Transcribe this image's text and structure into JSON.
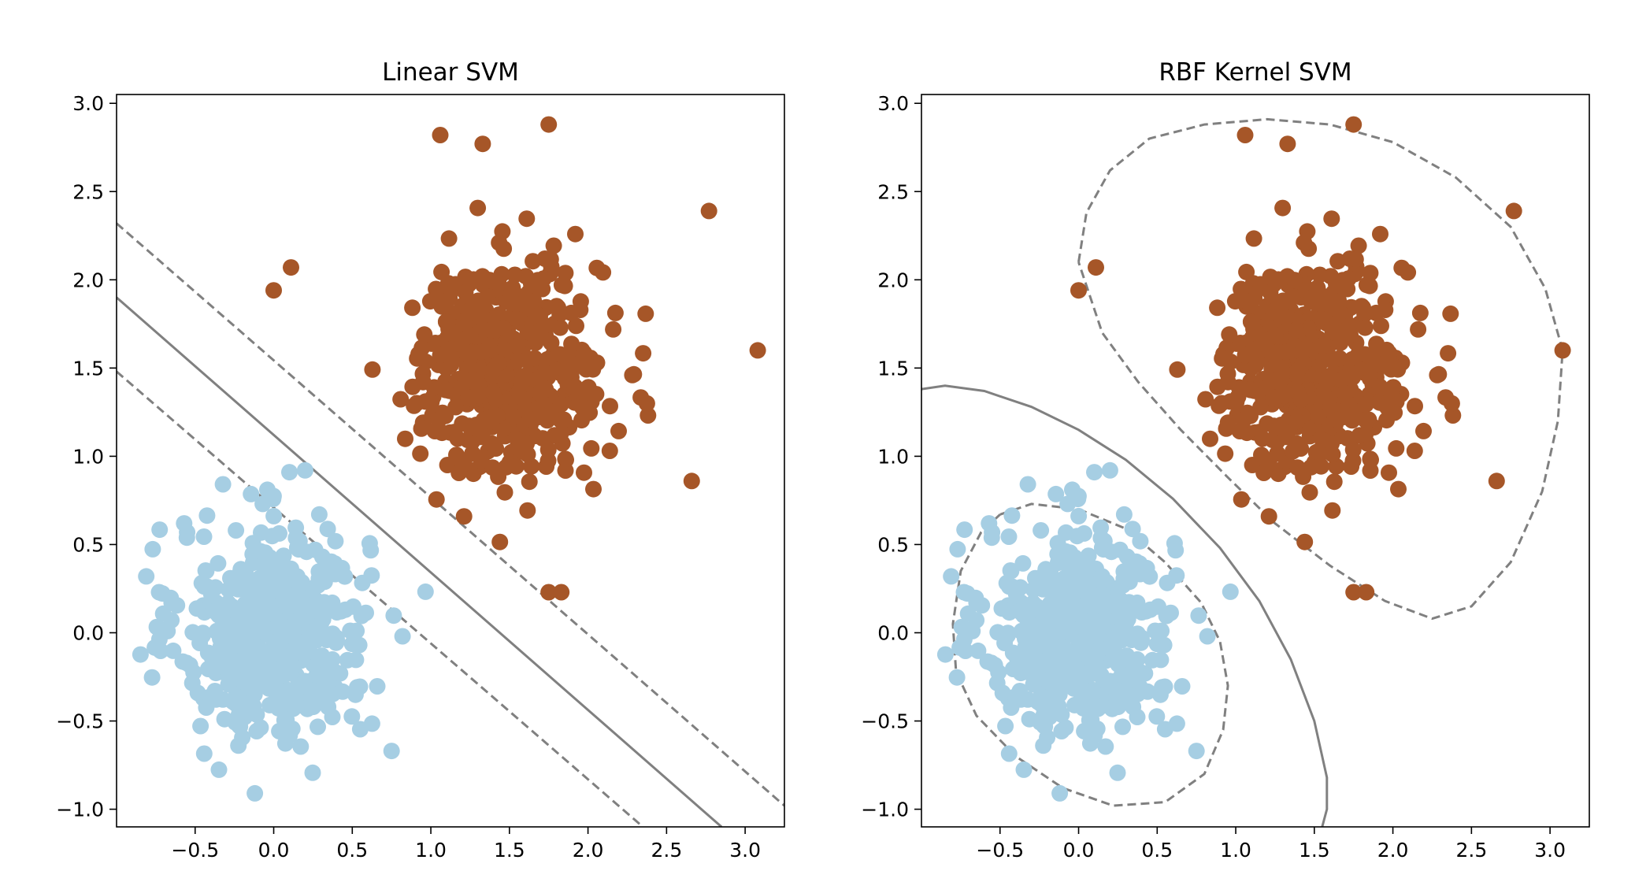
{
  "chart_data": [
    {
      "type": "scatter",
      "title": "Linear SVM",
      "xlim": [
        -1.0,
        3.25
      ],
      "ylim": [
        -1.1,
        3.05
      ],
      "xticks": [
        -0.5,
        0.0,
        0.5,
        1.0,
        1.5,
        2.0,
        2.5,
        3.0
      ],
      "xtick_labels": [
        "−0.5",
        "0.0",
        "0.5",
        "1.0",
        "1.5",
        "2.0",
        "2.5",
        "3.0"
      ],
      "yticks": [
        -1.0,
        -0.5,
        0.0,
        0.5,
        1.0,
        1.5,
        2.0,
        2.5,
        3.0
      ],
      "ytick_labels": [
        "−1.0",
        "−0.5",
        "0.0",
        "0.5",
        "1.0",
        "1.5",
        "2.0",
        "2.5",
        "3.0"
      ],
      "grid": false,
      "classes": [
        {
          "color": "#a6cee3",
          "center": [
            0.0,
            0.0
          ],
          "spread": 0.3,
          "count": 500
        },
        {
          "color": "#a65628",
          "center": [
            1.5,
            1.5
          ],
          "spread": 0.3,
          "count": 500
        }
      ],
      "notable_points": [
        [
          1.06,
          2.82
        ],
        [
          1.75,
          2.88
        ],
        [
          1.33,
          2.77
        ],
        [
          2.77,
          2.39
        ],
        [
          3.08,
          1.6
        ],
        [
          -0.07,
          0.73
        ],
        [
          -0.57,
          0.62
        ],
        [
          0.29,
          0.67
        ],
        [
          -0.12,
          -0.91
        ],
        [
          0.75,
          -0.67
        ],
        [
          0.82,
          -0.02
        ],
        [
          0.1,
          0.91
        ],
        [
          0.2,
          0.92
        ],
        [
          1.75,
          0.23
        ],
        [
          1.83,
          0.23
        ],
        [
          2.66,
          0.86
        ],
        [
          0.0,
          1.94
        ],
        [
          0.11,
          2.07
        ]
      ],
      "decision_lines": [
        {
          "kind": "boundary",
          "style": "solid",
          "points": [
            [
              -1.0,
              1.9
            ],
            [
              2.85,
              -1.1
            ]
          ]
        },
        {
          "kind": "margin",
          "style": "dashed",
          "points": [
            [
              -1.0,
              2.32
            ],
            [
              3.25,
              -0.98
            ]
          ]
        },
        {
          "kind": "margin",
          "style": "dashed",
          "points": [
            [
              -1.0,
              1.48
            ],
            [
              2.35,
              -1.1
            ]
          ]
        }
      ],
      "line_color": "#808080"
    },
    {
      "type": "scatter",
      "title": "RBF Kernel SVM",
      "xlim": [
        -1.0,
        3.25
      ],
      "ylim": [
        -1.1,
        3.05
      ],
      "xticks": [
        -0.5,
        0.0,
        0.5,
        1.0,
        1.5,
        2.0,
        2.5,
        3.0
      ],
      "xtick_labels": [
        "−0.5",
        "0.0",
        "0.5",
        "1.0",
        "1.5",
        "2.0",
        "2.5",
        "3.0"
      ],
      "yticks": [
        -1.0,
        -0.5,
        0.0,
        0.5,
        1.0,
        1.5,
        2.0,
        2.5,
        3.0
      ],
      "ytick_labels": [
        "−1.0",
        "−0.5",
        "0.0",
        "0.5",
        "1.0",
        "1.5",
        "2.0",
        "2.5",
        "3.0"
      ],
      "grid": false,
      "classes": [
        {
          "color": "#a6cee3",
          "center": [
            0.0,
            0.0
          ],
          "spread": 0.3,
          "count": 500
        },
        {
          "color": "#a65628",
          "center": [
            1.5,
            1.5
          ],
          "spread": 0.3,
          "count": 500
        }
      ],
      "notable_points": [
        [
          1.06,
          2.82
        ],
        [
          1.75,
          2.88
        ],
        [
          1.33,
          2.77
        ],
        [
          2.77,
          2.39
        ],
        [
          3.08,
          1.6
        ],
        [
          -0.07,
          0.73
        ],
        [
          -0.57,
          0.62
        ],
        [
          0.29,
          0.67
        ],
        [
          -0.12,
          -0.91
        ],
        [
          0.75,
          -0.67
        ],
        [
          0.82,
          -0.02
        ],
        [
          0.1,
          0.91
        ],
        [
          0.2,
          0.92
        ],
        [
          1.75,
          0.23
        ],
        [
          1.83,
          0.23
        ],
        [
          2.66,
          0.86
        ],
        [
          0.0,
          1.94
        ],
        [
          0.11,
          2.07
        ]
      ],
      "decision_lines": [
        {
          "kind": "boundary",
          "style": "solid",
          "points": [
            [
              -1.0,
              1.38
            ],
            [
              -0.85,
              1.4
            ],
            [
              -0.6,
              1.37
            ],
            [
              -0.3,
              1.28
            ],
            [
              0.0,
              1.15
            ],
            [
              0.3,
              0.98
            ],
            [
              0.6,
              0.76
            ],
            [
              0.9,
              0.48
            ],
            [
              1.15,
              0.18
            ],
            [
              1.35,
              -0.15
            ],
            [
              1.5,
              -0.5
            ],
            [
              1.58,
              -0.82
            ],
            [
              1.58,
              -1.0
            ],
            [
              1.55,
              -1.1
            ]
          ]
        },
        {
          "kind": "margin",
          "style": "dashed",
          "points": [
            [
              -0.5,
              0.67
            ],
            [
              -0.3,
              0.73
            ],
            [
              0.0,
              0.7
            ],
            [
              0.3,
              0.59
            ],
            [
              0.55,
              0.4
            ],
            [
              0.78,
              0.17
            ],
            [
              0.9,
              -0.05
            ],
            [
              0.95,
              -0.3
            ],
            [
              0.92,
              -0.55
            ],
            [
              0.8,
              -0.8
            ],
            [
              0.55,
              -0.96
            ],
            [
              0.22,
              -0.98
            ],
            [
              -0.1,
              -0.88
            ],
            [
              -0.4,
              -0.7
            ],
            [
              -0.65,
              -0.47
            ],
            [
              -0.78,
              -0.22
            ],
            [
              -0.8,
              0.05
            ],
            [
              -0.75,
              0.35
            ],
            [
              -0.62,
              0.57
            ],
            [
              -0.5,
              0.67
            ]
          ]
        },
        {
          "kind": "margin",
          "style": "dashed",
          "points": [
            [
              0.0,
              2.1
            ],
            [
              0.05,
              2.38
            ],
            [
              0.2,
              2.62
            ],
            [
              0.45,
              2.8
            ],
            [
              0.8,
              2.88
            ],
            [
              1.2,
              2.91
            ],
            [
              1.6,
              2.88
            ],
            [
              2.0,
              2.78
            ],
            [
              2.4,
              2.58
            ],
            [
              2.75,
              2.3
            ],
            [
              2.97,
              1.95
            ],
            [
              3.08,
              1.6
            ],
            [
              3.05,
              1.2
            ],
            [
              2.95,
              0.8
            ],
            [
              2.75,
              0.4
            ],
            [
              2.5,
              0.15
            ],
            [
              2.25,
              0.08
            ],
            [
              1.95,
              0.18
            ],
            [
              1.6,
              0.38
            ],
            [
              1.25,
              0.62
            ],
            [
              0.95,
              0.88
            ],
            [
              0.65,
              1.15
            ],
            [
              0.38,
              1.42
            ],
            [
              0.15,
              1.7
            ],
            [
              0.0,
              2.1
            ]
          ]
        }
      ],
      "line_color": "#808080"
    }
  ]
}
